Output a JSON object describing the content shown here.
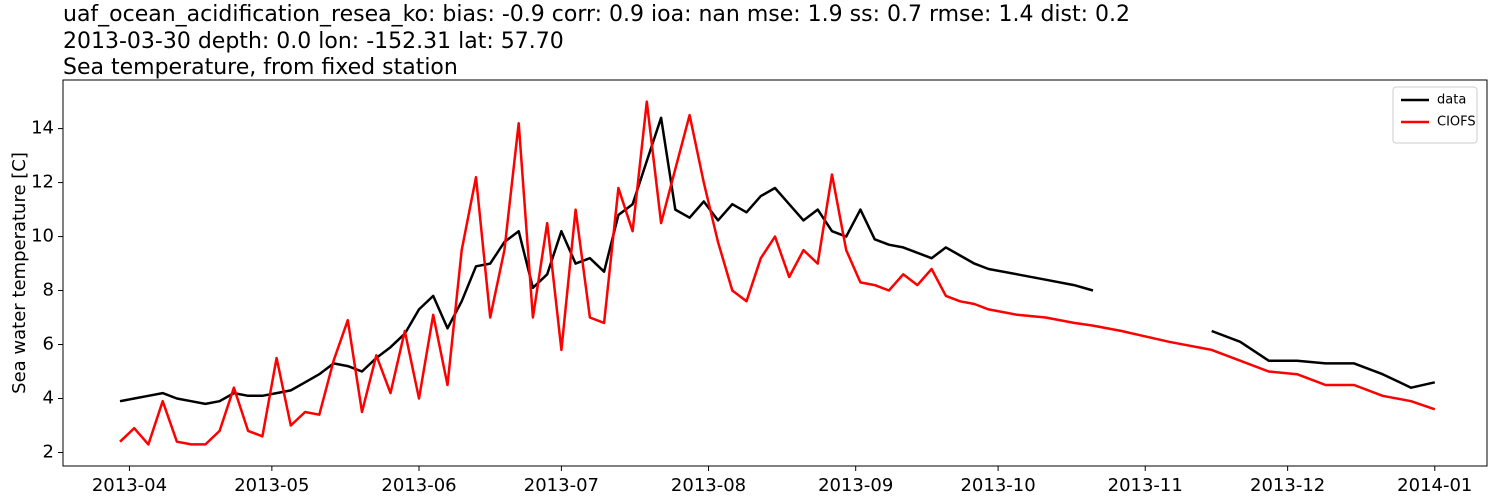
{
  "chart_data": {
    "type": "line",
    "title": [
      "uaf_ocean_acidification_resea_ko: bias: -0.9  corr: 0.9  ioa: nan  mse: 1.9  ss: 0.7  rmse: 1.4  dist: 0.2",
      "2013-03-30 depth: 0.0 lon: -152.31 lat: 57.70",
      "Sea temperature, from fixed station"
    ],
    "y_label": "Sea water temperature [C]",
    "x": [
      "2013-03-30",
      "2013-04-02",
      "2013-04-05",
      "2013-04-08",
      "2013-04-11",
      "2013-04-14",
      "2013-04-17",
      "2013-04-20",
      "2013-04-23",
      "2013-04-26",
      "2013-04-29",
      "2013-05-02",
      "2013-05-05",
      "2013-05-08",
      "2013-05-11",
      "2013-05-14",
      "2013-05-17",
      "2013-05-20",
      "2013-05-23",
      "2013-05-26",
      "2013-05-29",
      "2013-06-01",
      "2013-06-04",
      "2013-06-07",
      "2013-06-10",
      "2013-06-13",
      "2013-06-16",
      "2013-06-19",
      "2013-06-22",
      "2013-06-25",
      "2013-06-28",
      "2013-07-01",
      "2013-07-04",
      "2013-07-07",
      "2013-07-10",
      "2013-07-13",
      "2013-07-16",
      "2013-07-19",
      "2013-07-22",
      "2013-07-25",
      "2013-07-28",
      "2013-07-31",
      "2013-08-03",
      "2013-08-06",
      "2013-08-09",
      "2013-08-12",
      "2013-08-15",
      "2013-08-18",
      "2013-08-21",
      "2013-08-24",
      "2013-08-27",
      "2013-08-30",
      "2013-09-02",
      "2013-09-05",
      "2013-09-08",
      "2013-09-11",
      "2013-09-14",
      "2013-09-17",
      "2013-09-20",
      "2013-09-23",
      "2013-09-26",
      "2013-09-29",
      "2013-10-05",
      "2013-10-11",
      "2013-10-17",
      "2013-10-21",
      "2013-10-27",
      "2013-11-06",
      "2013-11-15",
      "2013-11-21",
      "2013-11-27",
      "2013-12-03",
      "2013-12-09",
      "2013-12-15",
      "2013-12-21",
      "2013-12-27",
      "2014-01-01"
    ],
    "series": [
      {
        "name": "data",
        "color": "#000000",
        "values": [
          3.9,
          4.0,
          4.1,
          4.2,
          4.0,
          3.9,
          3.8,
          3.9,
          4.2,
          4.1,
          4.1,
          4.2,
          4.3,
          4.6,
          4.9,
          5.3,
          5.2,
          5.0,
          5.5,
          5.9,
          6.4,
          7.3,
          7.8,
          6.6,
          7.6,
          8.9,
          9.0,
          9.8,
          10.2,
          8.1,
          8.6,
          10.2,
          9.0,
          9.2,
          8.7,
          10.8,
          11.2,
          12.8,
          14.4,
          11.0,
          10.7,
          11.3,
          10.6,
          11.2,
          10.9,
          11.5,
          11.8,
          11.2,
          10.6,
          11.0,
          10.2,
          10.0,
          11.0,
          9.9,
          9.7,
          9.6,
          9.4,
          9.2,
          9.6,
          9.3,
          9.0,
          8.8,
          8.6,
          8.4,
          8.2,
          8.0,
          null,
          null,
          6.5,
          6.1,
          5.4,
          5.4,
          5.3,
          5.3,
          4.9,
          4.4,
          4.6
        ]
      },
      {
        "name": "CIOFS",
        "color": "#ff0000",
        "values": [
          2.4,
          2.9,
          2.3,
          3.9,
          2.4,
          2.3,
          2.3,
          2.8,
          4.4,
          2.8,
          2.6,
          5.5,
          3.0,
          3.5,
          3.4,
          5.4,
          6.9,
          3.5,
          5.6,
          4.2,
          6.5,
          4.0,
          7.1,
          4.5,
          9.5,
          12.2,
          7.0,
          9.5,
          14.2,
          7.0,
          10.5,
          5.8,
          11.0,
          7.0,
          6.8,
          11.8,
          10.2,
          15.0,
          10.5,
          12.5,
          14.5,
          12.0,
          9.8,
          8.0,
          7.6,
          9.2,
          10.0,
          8.5,
          9.5,
          9.0,
          12.3,
          9.5,
          8.3,
          8.2,
          8.0,
          8.6,
          8.2,
          8.8,
          7.8,
          7.6,
          7.5,
          7.3,
          7.1,
          7.0,
          6.8,
          6.7,
          6.5,
          6.1,
          5.8,
          5.4,
          5.0,
          4.9,
          4.5,
          4.5,
          4.1,
          3.9,
          3.6
        ]
      }
    ],
    "xlim": [
      "2013-03-18",
      "2014-01-12"
    ],
    "xticks": [
      {
        "value": "2013-04-01",
        "label": "2013-04"
      },
      {
        "value": "2013-05-01",
        "label": "2013-05"
      },
      {
        "value": "2013-06-01",
        "label": "2013-06"
      },
      {
        "value": "2013-07-01",
        "label": "2013-07"
      },
      {
        "value": "2013-08-01",
        "label": "2013-08"
      },
      {
        "value": "2013-09-01",
        "label": "2013-09"
      },
      {
        "value": "2013-10-01",
        "label": "2013-10"
      },
      {
        "value": "2013-11-01",
        "label": "2013-11"
      },
      {
        "value": "2013-12-01",
        "label": "2013-12"
      },
      {
        "value": "2014-01-01",
        "label": "2014-01"
      }
    ],
    "ylim": [
      1.5,
      15.8
    ],
    "yticks": [
      2,
      4,
      6,
      8,
      10,
      12,
      14
    ],
    "grid": false,
    "legend": "upper right"
  }
}
